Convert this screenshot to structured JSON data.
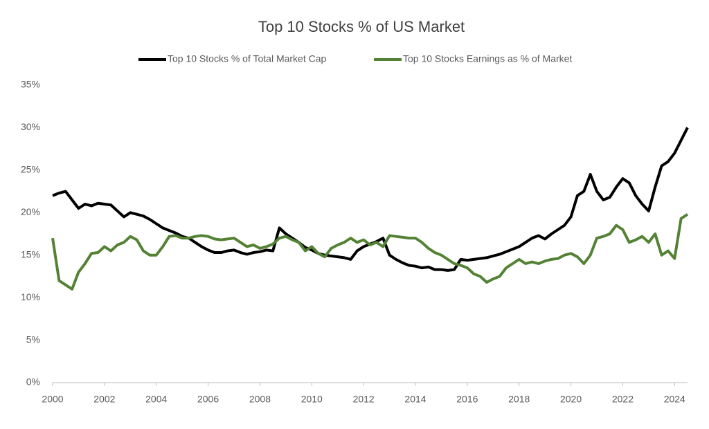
{
  "chart_data": {
    "type": "line",
    "title": "Top 10 Stocks % of US Market",
    "x": [
      2000,
      2000.25,
      2000.5,
      2000.75,
      2001,
      2001.25,
      2001.5,
      2001.75,
      2002,
      2002.25,
      2002.5,
      2002.75,
      2003,
      2003.25,
      2003.5,
      2003.75,
      2004,
      2004.25,
      2004.5,
      2004.75,
      2005,
      2005.25,
      2005.5,
      2005.75,
      2006,
      2006.25,
      2006.5,
      2006.75,
      2007,
      2007.25,
      2007.5,
      2007.75,
      2008,
      2008.25,
      2008.5,
      2008.75,
      2009,
      2009.25,
      2009.5,
      2009.75,
      2010,
      2010.25,
      2010.5,
      2010.75,
      2011,
      2011.25,
      2011.5,
      2011.75,
      2012,
      2012.25,
      2012.5,
      2012.75,
      2013,
      2013.25,
      2013.5,
      2013.75,
      2014,
      2014.25,
      2014.5,
      2014.75,
      2015,
      2015.25,
      2015.5,
      2015.75,
      2016,
      2016.25,
      2016.5,
      2016.75,
      2017,
      2017.25,
      2017.5,
      2017.75,
      2018,
      2018.25,
      2018.5,
      2018.75,
      2019,
      2019.25,
      2019.5,
      2019.75,
      2020,
      2020.25,
      2020.5,
      2020.75,
      2021,
      2021.25,
      2021.5,
      2021.75,
      2022,
      2022.25,
      2022.5,
      2022.75,
      2023,
      2023.25,
      2023.5,
      2023.75,
      2024,
      2024.25,
      2024.5
    ],
    "series": [
      {
        "name": "Top 10 Stocks % of Total Market Cap",
        "color": "#000000",
        "values": [
          22,
          22.3,
          22.5,
          21.5,
          20.5,
          21,
          20.8,
          21.1,
          21,
          20.9,
          20.2,
          19.5,
          20,
          19.8,
          19.6,
          19.2,
          18.7,
          18.2,
          17.9,
          17.6,
          17.2,
          17,
          16.5,
          16,
          15.6,
          15.3,
          15.3,
          15.5,
          15.6,
          15.3,
          15.1,
          15.3,
          15.4,
          15.6,
          15.5,
          18.2,
          17.5,
          17,
          16.5,
          15.9,
          15.6,
          15.2,
          15,
          14.9,
          14.8,
          14.7,
          14.5,
          15.5,
          16,
          16.3,
          16.6,
          17,
          15,
          14.5,
          14.1,
          13.8,
          13.7,
          13.5,
          13.6,
          13.3,
          13.3,
          13.2,
          13.3,
          14.5,
          14.4,
          14.5,
          14.6,
          14.7,
          14.9,
          15.1,
          15.4,
          15.7,
          16,
          16.5,
          17,
          17.3,
          16.9,
          17.5,
          18,
          18.5,
          19.5,
          22,
          22.5,
          24.5,
          22.5,
          21.5,
          21.8,
          23,
          24,
          23.5,
          22,
          21,
          20.2,
          23,
          25.5,
          26,
          27,
          28.5,
          30
        ]
      },
      {
        "name": "Top 10 Stocks Earnings as % of Market",
        "color": "#548235",
        "values": [
          17,
          12,
          11.5,
          11,
          13,
          14,
          15.2,
          15.3,
          16,
          15.5,
          16.2,
          16.5,
          17.2,
          16.8,
          15.5,
          15,
          15,
          16,
          17.2,
          17.3,
          17,
          17,
          17.2,
          17.3,
          17.2,
          16.9,
          16.8,
          16.9,
          17,
          16.5,
          16,
          16.2,
          15.8,
          16,
          16.3,
          17,
          17.2,
          16.8,
          16.5,
          15.5,
          16,
          15.2,
          14.8,
          15.8,
          16.2,
          16.5,
          17,
          16.5,
          16.8,
          16.2,
          16.5,
          16,
          17.3,
          17.2,
          17.1,
          17,
          17,
          16.5,
          15.8,
          15.3,
          15,
          14.5,
          14,
          13.8,
          13.5,
          12.8,
          12.5,
          11.8,
          12.2,
          12.5,
          13.5,
          14,
          14.5,
          14,
          14.2,
          14,
          14.3,
          14.5,
          14.6,
          15,
          15.2,
          14.8,
          14,
          15,
          17,
          17.2,
          17.5,
          18.5,
          18,
          16.5,
          16.8,
          17.2,
          16.5,
          17.5,
          15,
          15.5,
          14.6,
          19.3,
          19.8
        ]
      }
    ],
    "xlim": [
      2000,
      2024.5
    ],
    "xticks": [
      2000,
      2002,
      2004,
      2006,
      2008,
      2010,
      2012,
      2014,
      2016,
      2018,
      2020,
      2022,
      2024
    ],
    "ylim": [
      0,
      35
    ],
    "yticks": [
      {
        "value": 0,
        "label": "0%"
      },
      {
        "value": 5,
        "label": "5%"
      },
      {
        "value": 10,
        "label": "10%"
      },
      {
        "value": 15,
        "label": "15%"
      },
      {
        "value": 20,
        "label": "20%"
      },
      {
        "value": 25,
        "label": "25%"
      },
      {
        "value": 30,
        "label": "30%"
      },
      {
        "value": 35,
        "label": "35%"
      }
    ],
    "grid": false,
    "legend": "top"
  }
}
